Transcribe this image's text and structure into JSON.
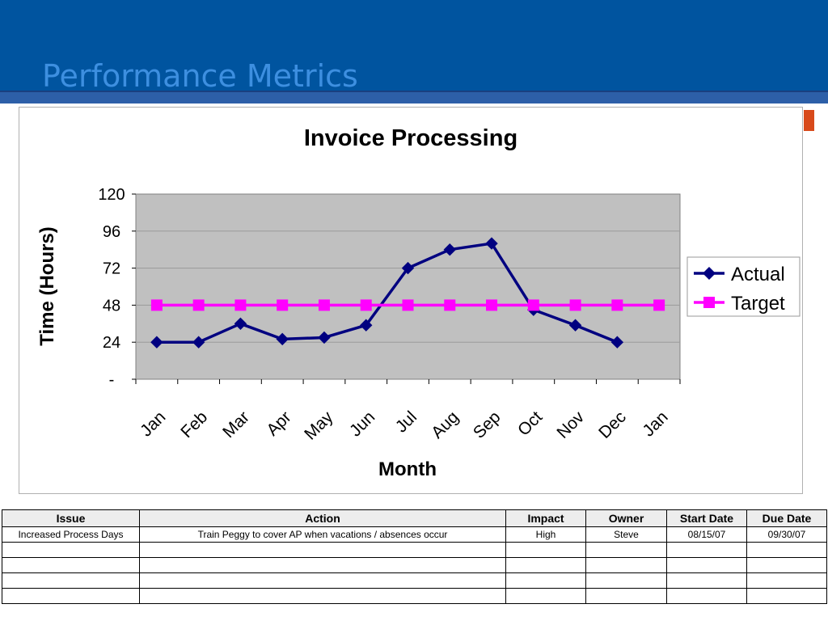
{
  "slide": {
    "title": "Performance Metrics"
  },
  "colors": {
    "header": "#00549f",
    "title": "#3d8fe0",
    "actual": "#000080",
    "target": "#ff00ff",
    "plot_bg": "#c0c0c0"
  },
  "chart_data": {
    "type": "line",
    "title": "Invoice Processing",
    "xlabel": "Month",
    "ylabel": "Time (Hours)",
    "categories": [
      "Jan",
      "Feb",
      "Mar",
      "Apr",
      "May",
      "Jun",
      "Jul",
      "Aug",
      "Sep",
      "Oct",
      "Nov",
      "Dec",
      "Jan"
    ],
    "ylim": [
      0,
      120
    ],
    "yticks": [
      "-",
      "24",
      "48",
      "72",
      "96",
      "120"
    ],
    "grid": true,
    "legend": "right",
    "series": [
      {
        "name": "Actual",
        "marker": "diamond",
        "color": "#000080",
        "values": [
          24,
          24,
          36,
          26,
          27,
          35,
          72,
          84,
          88,
          45,
          35,
          24,
          null
        ]
      },
      {
        "name": "Target",
        "marker": "square",
        "color": "#ff00ff",
        "values": [
          48,
          48,
          48,
          48,
          48,
          48,
          48,
          48,
          48,
          48,
          48,
          48,
          48
        ]
      }
    ]
  },
  "table": {
    "headers": [
      "Issue",
      "Action",
      "Impact",
      "Owner",
      "Start Date",
      "Due Date"
    ],
    "rows": [
      [
        "Increased Process Days",
        "Train Peggy to cover AP when vacations / absences occur",
        "High",
        "Steve",
        "08/15/07",
        "09/30/07"
      ],
      [
        "",
        "",
        "",
        "",
        "",
        ""
      ],
      [
        "",
        "",
        "",
        "",
        "",
        ""
      ],
      [
        "",
        "",
        "",
        "",
        "",
        ""
      ],
      [
        "",
        "",
        "",
        "",
        "",
        ""
      ]
    ]
  }
}
